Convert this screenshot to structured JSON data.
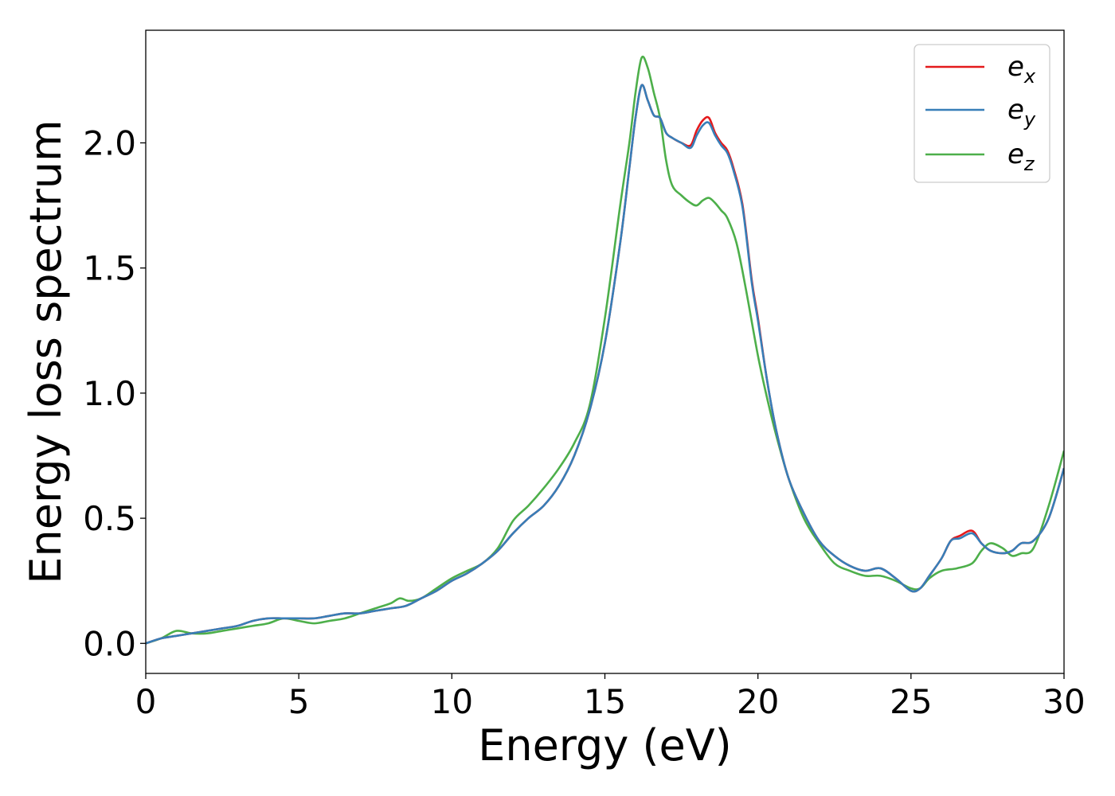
{
  "chart_data": {
    "type": "line",
    "xlabel": "Energy (eV)",
    "ylabel": "Energy loss spectrum",
    "xlim": [
      0,
      30
    ],
    "ylim": [
      -0.12,
      2.45
    ],
    "xticks": [
      0,
      5,
      10,
      15,
      20,
      25,
      30
    ],
    "xtick_labels": [
      "0",
      "5",
      "10",
      "15",
      "20",
      "25",
      "30"
    ],
    "yticks": [
      0.0,
      0.5,
      1.0,
      1.5,
      2.0
    ],
    "ytick_labels": [
      "0.0",
      "0.5",
      "1.0",
      "1.5",
      "2.0"
    ],
    "grid": false,
    "legend_position": "top-right",
    "series": [
      {
        "name": "e_x",
        "label_main": "e",
        "label_sub": "x",
        "color": "#e41a1c",
        "x": [
          0,
          0.5,
          1,
          1.5,
          2,
          2.5,
          3,
          3.5,
          4,
          4.5,
          5,
          5.5,
          6,
          6.5,
          7,
          7.5,
          8,
          8.5,
          9,
          9.5,
          10,
          10.5,
          11,
          11.5,
          12,
          12.5,
          13,
          13.5,
          14,
          14.5,
          15,
          15.5,
          15.8,
          16.0,
          16.2,
          16.4,
          16.6,
          16.8,
          17.0,
          17.2,
          17.5,
          17.8,
          18.0,
          18.2,
          18.4,
          18.6,
          18.8,
          19.0,
          19.2,
          19.5,
          19.8,
          20.0,
          20.3,
          20.6,
          21.0,
          21.5,
          22,
          22.5,
          23,
          23.5,
          24,
          24.5,
          25,
          25.3,
          25.6,
          26,
          26.3,
          26.6,
          27,
          27.3,
          27.6,
          28,
          28.3,
          28.6,
          29,
          29.5,
          30
        ],
        "y": [
          0.0,
          0.02,
          0.03,
          0.04,
          0.05,
          0.06,
          0.07,
          0.09,
          0.1,
          0.1,
          0.1,
          0.1,
          0.11,
          0.12,
          0.12,
          0.13,
          0.14,
          0.15,
          0.18,
          0.21,
          0.25,
          0.28,
          0.32,
          0.37,
          0.44,
          0.5,
          0.55,
          0.63,
          0.75,
          0.93,
          1.2,
          1.6,
          1.9,
          2.1,
          2.23,
          2.17,
          2.11,
          2.1,
          2.04,
          2.02,
          2.0,
          1.99,
          2.05,
          2.09,
          2.1,
          2.04,
          2.0,
          1.97,
          1.9,
          1.75,
          1.45,
          1.3,
          1.05,
          0.85,
          0.66,
          0.52,
          0.41,
          0.35,
          0.31,
          0.29,
          0.3,
          0.26,
          0.21,
          0.22,
          0.27,
          0.34,
          0.41,
          0.43,
          0.45,
          0.4,
          0.37,
          0.36,
          0.37,
          0.4,
          0.41,
          0.5,
          0.7
        ]
      },
      {
        "name": "e_y",
        "label_main": "e",
        "label_sub": "y",
        "color": "#377eb8",
        "x": [
          0,
          0.5,
          1,
          1.5,
          2,
          2.5,
          3,
          3.5,
          4,
          4.5,
          5,
          5.5,
          6,
          6.5,
          7,
          7.5,
          8,
          8.5,
          9,
          9.5,
          10,
          10.5,
          11,
          11.5,
          12,
          12.5,
          13,
          13.5,
          14,
          14.5,
          15,
          15.5,
          15.8,
          16.0,
          16.2,
          16.4,
          16.6,
          16.8,
          17.0,
          17.2,
          17.5,
          17.8,
          18.0,
          18.2,
          18.4,
          18.6,
          18.8,
          19.0,
          19.2,
          19.5,
          19.8,
          20.0,
          20.3,
          20.6,
          21.0,
          21.5,
          22,
          22.5,
          23,
          23.5,
          24,
          24.5,
          25,
          25.3,
          25.6,
          26,
          26.3,
          26.6,
          27,
          27.3,
          27.6,
          28,
          28.3,
          28.6,
          29,
          29.5,
          30
        ],
        "y": [
          0.0,
          0.02,
          0.03,
          0.04,
          0.05,
          0.06,
          0.07,
          0.09,
          0.1,
          0.1,
          0.1,
          0.1,
          0.11,
          0.12,
          0.12,
          0.13,
          0.14,
          0.15,
          0.18,
          0.21,
          0.25,
          0.28,
          0.32,
          0.37,
          0.44,
          0.5,
          0.55,
          0.63,
          0.75,
          0.93,
          1.2,
          1.6,
          1.9,
          2.1,
          2.23,
          2.17,
          2.11,
          2.1,
          2.04,
          2.02,
          2.0,
          1.98,
          2.03,
          2.07,
          2.08,
          2.03,
          1.99,
          1.96,
          1.89,
          1.74,
          1.44,
          1.29,
          1.05,
          0.85,
          0.66,
          0.52,
          0.41,
          0.35,
          0.31,
          0.29,
          0.3,
          0.26,
          0.21,
          0.22,
          0.27,
          0.34,
          0.41,
          0.42,
          0.44,
          0.4,
          0.37,
          0.36,
          0.37,
          0.4,
          0.41,
          0.5,
          0.7
        ]
      },
      {
        "name": "e_z",
        "label_main": "e",
        "label_sub": "z",
        "color": "#4daf4a",
        "x": [
          0,
          0.5,
          1,
          1.5,
          2,
          2.5,
          3,
          3.5,
          4,
          4.5,
          5,
          5.5,
          6,
          6.5,
          7,
          7.5,
          8,
          8.3,
          8.6,
          9,
          9.5,
          10,
          10.5,
          11,
          11.5,
          12,
          12.5,
          13,
          13.5,
          14,
          14.5,
          15,
          15.5,
          15.8,
          16.0,
          16.2,
          16.4,
          16.6,
          16.8,
          17.0,
          17.2,
          17.5,
          17.8,
          18.0,
          18.2,
          18.4,
          18.6,
          18.8,
          19.0,
          19.3,
          19.6,
          20.0,
          20.3,
          20.6,
          21.0,
          21.5,
          22,
          22.5,
          23,
          23.5,
          24,
          24.5,
          25,
          25.3,
          25.6,
          26,
          26.5,
          27,
          27.3,
          27.6,
          28,
          28.3,
          28.6,
          29,
          29.5,
          30
        ],
        "y": [
          0.0,
          0.02,
          0.05,
          0.04,
          0.04,
          0.05,
          0.06,
          0.07,
          0.08,
          0.1,
          0.09,
          0.08,
          0.09,
          0.1,
          0.12,
          0.14,
          0.16,
          0.18,
          0.17,
          0.18,
          0.22,
          0.26,
          0.29,
          0.32,
          0.38,
          0.49,
          0.55,
          0.62,
          0.7,
          0.8,
          0.95,
          1.3,
          1.75,
          2.0,
          2.2,
          2.34,
          2.3,
          2.2,
          2.1,
          1.93,
          1.83,
          1.79,
          1.76,
          1.75,
          1.77,
          1.78,
          1.76,
          1.73,
          1.7,
          1.6,
          1.42,
          1.15,
          0.98,
          0.83,
          0.66,
          0.5,
          0.4,
          0.32,
          0.29,
          0.27,
          0.27,
          0.25,
          0.22,
          0.22,
          0.26,
          0.29,
          0.3,
          0.32,
          0.37,
          0.4,
          0.38,
          0.35,
          0.36,
          0.38,
          0.55,
          0.77
        ]
      }
    ]
  }
}
